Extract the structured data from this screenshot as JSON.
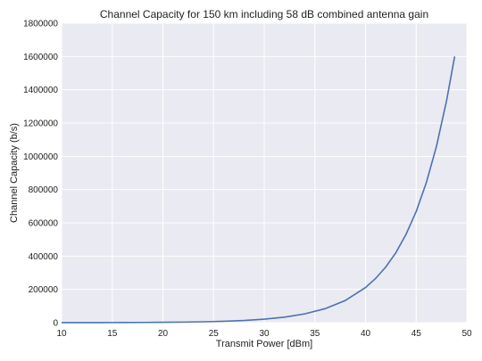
{
  "chart_data": {
    "type": "line",
    "title": "Channel Capacity for 150 km including 58 dB combined antenna gain",
    "xlabel": "Transmit Power [dBm]",
    "ylabel": "Channel Capacity (b/s)",
    "xlim": [
      10,
      50
    ],
    "ylim": [
      0,
      1800000
    ],
    "xticks": [
      10,
      15,
      20,
      25,
      30,
      35,
      40,
      45,
      50
    ],
    "yticks": [
      0,
      200000,
      400000,
      600000,
      800000,
      1000000,
      1200000,
      1400000,
      1600000,
      1800000
    ],
    "grid": true,
    "colors": {
      "background": "#eaeaf2",
      "grid": "#ffffff",
      "line": "#4c72b0"
    },
    "series": [
      {
        "x": [
          10,
          12,
          14,
          16,
          18,
          20,
          22,
          24,
          26,
          28,
          30,
          32,
          34,
          36,
          38,
          40,
          41,
          42,
          43,
          44,
          45,
          46,
          47,
          48,
          48.8
        ],
        "y": [
          200,
          320,
          520,
          830,
          1300,
          2100,
          3300,
          5300,
          8400,
          13300,
          21000,
          33400,
          53000,
          84000,
          133000,
          211000,
          266000,
          335000,
          421000,
          531000,
          668000,
          841000,
          1059000,
          1334000,
          1600000
        ]
      }
    ]
  }
}
